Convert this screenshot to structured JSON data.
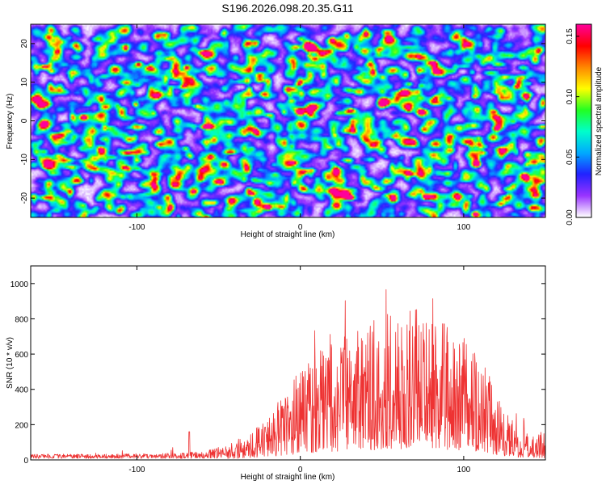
{
  "title": "S196.2026.098.20.35.G11",
  "chart_data": [
    {
      "type": "heatmap",
      "xlabel": "Height of straight line (km)",
      "ylabel": "Frequency (Hz)",
      "xlim": [
        -165,
        150
      ],
      "ylim": [
        -25,
        25
      ],
      "x_ticks": [
        -100,
        0,
        100
      ],
      "x_tick_labels": [
        "-100",
        "0",
        "100"
      ],
      "y_ticks": [
        -20,
        -10,
        0,
        10,
        20
      ],
      "y_tick_labels": [
        "-20",
        "-10",
        "0",
        "10",
        "20"
      ],
      "colorbar": {
        "label": "Normalized spectral amplitude",
        "range": [
          0,
          0.16
        ],
        "ticks": [
          0.0,
          0.05,
          0.1,
          0.15
        ],
        "tick_labels": [
          "0.00",
          "0.05",
          "0.10",
          "0.15"
        ],
        "colors": [
          "#ffffff",
          "#9933ff",
          "#2222ff",
          "#00aaff",
          "#00ffcc",
          "#22ff22",
          "#ffff00",
          "#ff8800",
          "#ff0000",
          "#ff0099"
        ]
      },
      "hotspots": [
        {
          "x": -133,
          "y": 1,
          "value": 0.15
        },
        {
          "x": -70,
          "y": 14,
          "value": 0.15
        },
        {
          "x": 132,
          "y": 9,
          "value": 0.14
        },
        {
          "x": 108,
          "y": -11,
          "value": 0.14
        },
        {
          "x": 2,
          "y": -13,
          "value": 0.12
        },
        {
          "x": -150,
          "y": 18,
          "value": 0.1
        },
        {
          "x": 125,
          "y": -20,
          "value": 0.1
        },
        {
          "x": 75,
          "y": -2,
          "value": 0.1
        },
        {
          "x": -30,
          "y": -7,
          "value": 0.09
        }
      ]
    },
    {
      "type": "line",
      "xlabel": "Height of straight line (km)",
      "ylabel": "SNR (10 * v/v)",
      "xlim": [
        -165,
        150
      ],
      "ylim": [
        0,
        1100
      ],
      "x_ticks": [
        -100,
        0,
        100
      ],
      "x_tick_labels": [
        "-100",
        "0",
        "100"
      ],
      "y_ticks": [
        0,
        200,
        400,
        600,
        800,
        1000
      ],
      "y_tick_labels": [
        "0",
        "200",
        "400",
        "600",
        "800",
        "1000"
      ],
      "color": "#ee3333",
      "envelope": {
        "x": [
          -165,
          -120,
          -80,
          -60,
          -45,
          -35,
          -20,
          -10,
          0,
          10,
          20,
          40,
          60,
          70,
          80,
          95,
          110,
          120,
          130,
          140,
          150
        ],
        "y": [
          25,
          25,
          30,
          40,
          70,
          120,
          220,
          330,
          430,
          540,
          600,
          680,
          780,
          760,
          770,
          640,
          560,
          360,
          200,
          150,
          140
        ]
      }
    }
  ]
}
